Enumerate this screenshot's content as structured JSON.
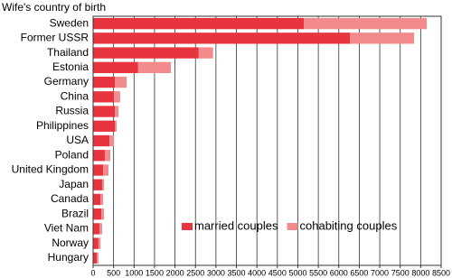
{
  "chart_data": {
    "type": "stacked-barh",
    "title": "Wife's country of birth",
    "categories": [
      "Sweden",
      "Former USSR",
      "Thailand",
      "Estonia",
      "Germany",
      "China",
      "Russia",
      "Philippines",
      "USA",
      "Poland",
      "United Kingdom",
      "Japan",
      "Canada",
      "Brazil",
      "Viet Nam",
      "Norway",
      "Hungary"
    ],
    "series": [
      {
        "name": "married couples",
        "color": "#e8343e",
        "values": [
          5150,
          6270,
          2580,
          1100,
          530,
          510,
          530,
          530,
          400,
          290,
          245,
          220,
          180,
          200,
          155,
          130,
          90
        ]
      },
      {
        "name": "cohabiting couples",
        "color": "#f38a8c",
        "values": [
          3000,
          1570,
          350,
          800,
          290,
          150,
          90,
          45,
          110,
          130,
          130,
          45,
          65,
          65,
          65,
          50,
          40
        ]
      }
    ],
    "xlim": [
      0,
      8500
    ],
    "xticks": [
      0,
      500,
      1000,
      1500,
      2000,
      2500,
      3000,
      3500,
      4000,
      4500,
      5000,
      5500,
      6000,
      6500,
      7000,
      7500,
      8000,
      8500
    ],
    "grid": true,
    "legend": "lower-center"
  }
}
